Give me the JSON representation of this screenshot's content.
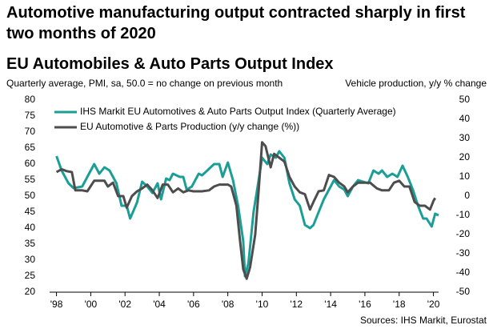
{
  "chart_data": {
    "type": "line",
    "headline": "Automotive manufacturing output contracted sharply in first two months of 2020",
    "title": "EU Automobiles & Auto Parts Output Index",
    "subtitle": "Quarterly average, PMI, sa, 50.0 = no change on previous month",
    "y2_label": "Vehicle production, y/y % change",
    "source": "Sources: IHS Markit, Eurostat",
    "xlim": [
      1997.6,
      2020.3
    ],
    "xticks": [
      {
        "value": 1998,
        "label": "'98"
      },
      {
        "value": 2000,
        "label": "'00"
      },
      {
        "value": 2002,
        "label": "'02"
      },
      {
        "value": 2004,
        "label": "'04"
      },
      {
        "value": 2006,
        "label": "'06"
      },
      {
        "value": 2008,
        "label": "'08"
      },
      {
        "value": 2010,
        "label": "'10"
      },
      {
        "value": 2012,
        "label": "'12"
      },
      {
        "value": 2014,
        "label": "'14"
      },
      {
        "value": 2016,
        "label": "'16"
      },
      {
        "value": 2018,
        "label": "'18"
      },
      {
        "value": 2020,
        "label": "'20"
      }
    ],
    "ylim": [
      20,
      80
    ],
    "yticks": [
      20,
      25,
      30,
      35,
      40,
      45,
      50,
      55,
      60,
      65,
      70,
      75,
      80
    ],
    "y2lim": [
      -50,
      50
    ],
    "y2ticks": [
      -50,
      -40,
      -30,
      -20,
      -10,
      0,
      10,
      20,
      30,
      40,
      50
    ],
    "series": [
      {
        "name": "IHS Markit EU Automotives & Auto Parts Output Index (Quarterly Average)",
        "color": "#1a9e96",
        "axis": "y",
        "x": [
          1998.0,
          1998.3,
          1998.7,
          1999.0,
          1999.5,
          1999.8,
          2000.2,
          2000.5,
          2000.8,
          2001.1,
          2001.5,
          2001.8,
          2002.1,
          2002.3,
          2002.7,
          2003.0,
          2003.3,
          2003.6,
          2003.9,
          2004.1,
          2004.4,
          2004.6,
          2004.8,
          2005.2,
          2005.4,
          2005.6,
          2005.9,
          2006.3,
          2006.5,
          2006.8,
          2007.2,
          2007.5,
          2007.7,
          2008.0,
          2008.3,
          2008.6,
          2008.9,
          2009.0,
          2009.2,
          2009.5,
          2009.8,
          2010.0,
          2010.3,
          2010.5,
          2010.8,
          2011.0,
          2011.3,
          2011.6,
          2011.9,
          2012.2,
          2012.5,
          2012.8,
          2013.0,
          2013.3,
          2013.6,
          2013.9,
          2014.2,
          2014.5,
          2014.8,
          2015.0,
          2015.3,
          2015.6,
          2015.9,
          2016.2,
          2016.5,
          2016.8,
          2017.0,
          2017.3,
          2017.6,
          2017.9,
          2018.2,
          2018.5,
          2018.8,
          2019.1,
          2019.4,
          2019.6,
          2019.9,
          2020.1,
          2020.3
        ],
        "values": [
          62.5,
          58,
          54,
          52.5,
          53,
          56,
          60,
          57,
          59,
          58,
          54,
          47,
          47,
          43,
          48,
          54.5,
          53,
          51,
          54,
          49,
          55.5,
          55,
          57,
          56,
          56,
          52,
          53,
          57,
          56.5,
          58,
          60,
          60,
          56,
          60.5,
          55,
          47,
          36,
          25,
          29,
          45,
          55,
          62,
          60,
          63,
          62,
          64,
          62,
          54,
          49,
          47,
          41,
          40,
          41,
          45,
          49,
          52,
          55,
          53,
          52,
          50,
          53,
          55,
          54.5,
          54,
          58,
          57,
          58,
          56,
          57,
          56,
          59.5,
          56,
          52,
          47,
          43,
          43,
          40.5,
          44.5,
          44
        ]
      },
      {
        "name": "EU Automotive & Parts Production (y/y change (%))",
        "color": "#4d4d4d",
        "axis": "y2",
        "x": [
          1998.0,
          1998.3,
          1998.6,
          1998.9,
          1999.1,
          1999.5,
          1999.8,
          2000.2,
          2000.5,
          2000.8,
          2001.0,
          2001.3,
          2001.6,
          2001.9,
          2002.1,
          2002.4,
          2002.7,
          2003.0,
          2003.3,
          2003.6,
          2003.9,
          2004.2,
          2004.5,
          2004.8,
          2005.1,
          2005.4,
          2005.7,
          2006.0,
          2006.5,
          2006.9,
          2007.2,
          2007.5,
          2008.0,
          2008.2,
          2008.5,
          2008.7,
          2008.9,
          2009.1,
          2009.3,
          2009.6,
          2009.8,
          2010.0,
          2010.2,
          2010.5,
          2010.7,
          2011.0,
          2011.3,
          2011.6,
          2011.9,
          2012.2,
          2012.5,
          2012.8,
          2013.0,
          2013.3,
          2013.6,
          2013.9,
          2014.2,
          2014.5,
          2014.8,
          2015.0,
          2015.3,
          2015.6,
          2016.0,
          2016.3,
          2016.7,
          2017.0,
          2017.4,
          2017.7,
          2018.0,
          2018.3,
          2018.6,
          2018.9,
          2019.2,
          2019.5,
          2019.8,
          2020.0,
          2020.1
        ],
        "values": [
          12.5,
          14,
          13,
          12.5,
          3,
          3,
          2.5,
          8,
          8,
          8,
          5,
          7,
          0,
          0,
          -6,
          0,
          2.5,
          4,
          6,
          3,
          -1,
          6,
          6,
          2,
          4,
          2,
          3,
          2.5,
          2.5,
          3,
          5,
          6,
          6,
          5,
          -5,
          -22,
          -38,
          -43,
          -37,
          -20,
          3,
          28,
          26,
          15,
          22,
          20,
          18,
          10,
          5,
          2,
          1,
          -7,
          -3,
          2.5,
          3,
          11,
          10,
          7,
          5,
          2,
          5,
          7,
          7,
          7,
          4,
          3,
          3,
          7,
          8,
          5,
          5,
          -3,
          -5,
          -5,
          -7,
          -2.5,
          -1
        ]
      }
    ]
  }
}
